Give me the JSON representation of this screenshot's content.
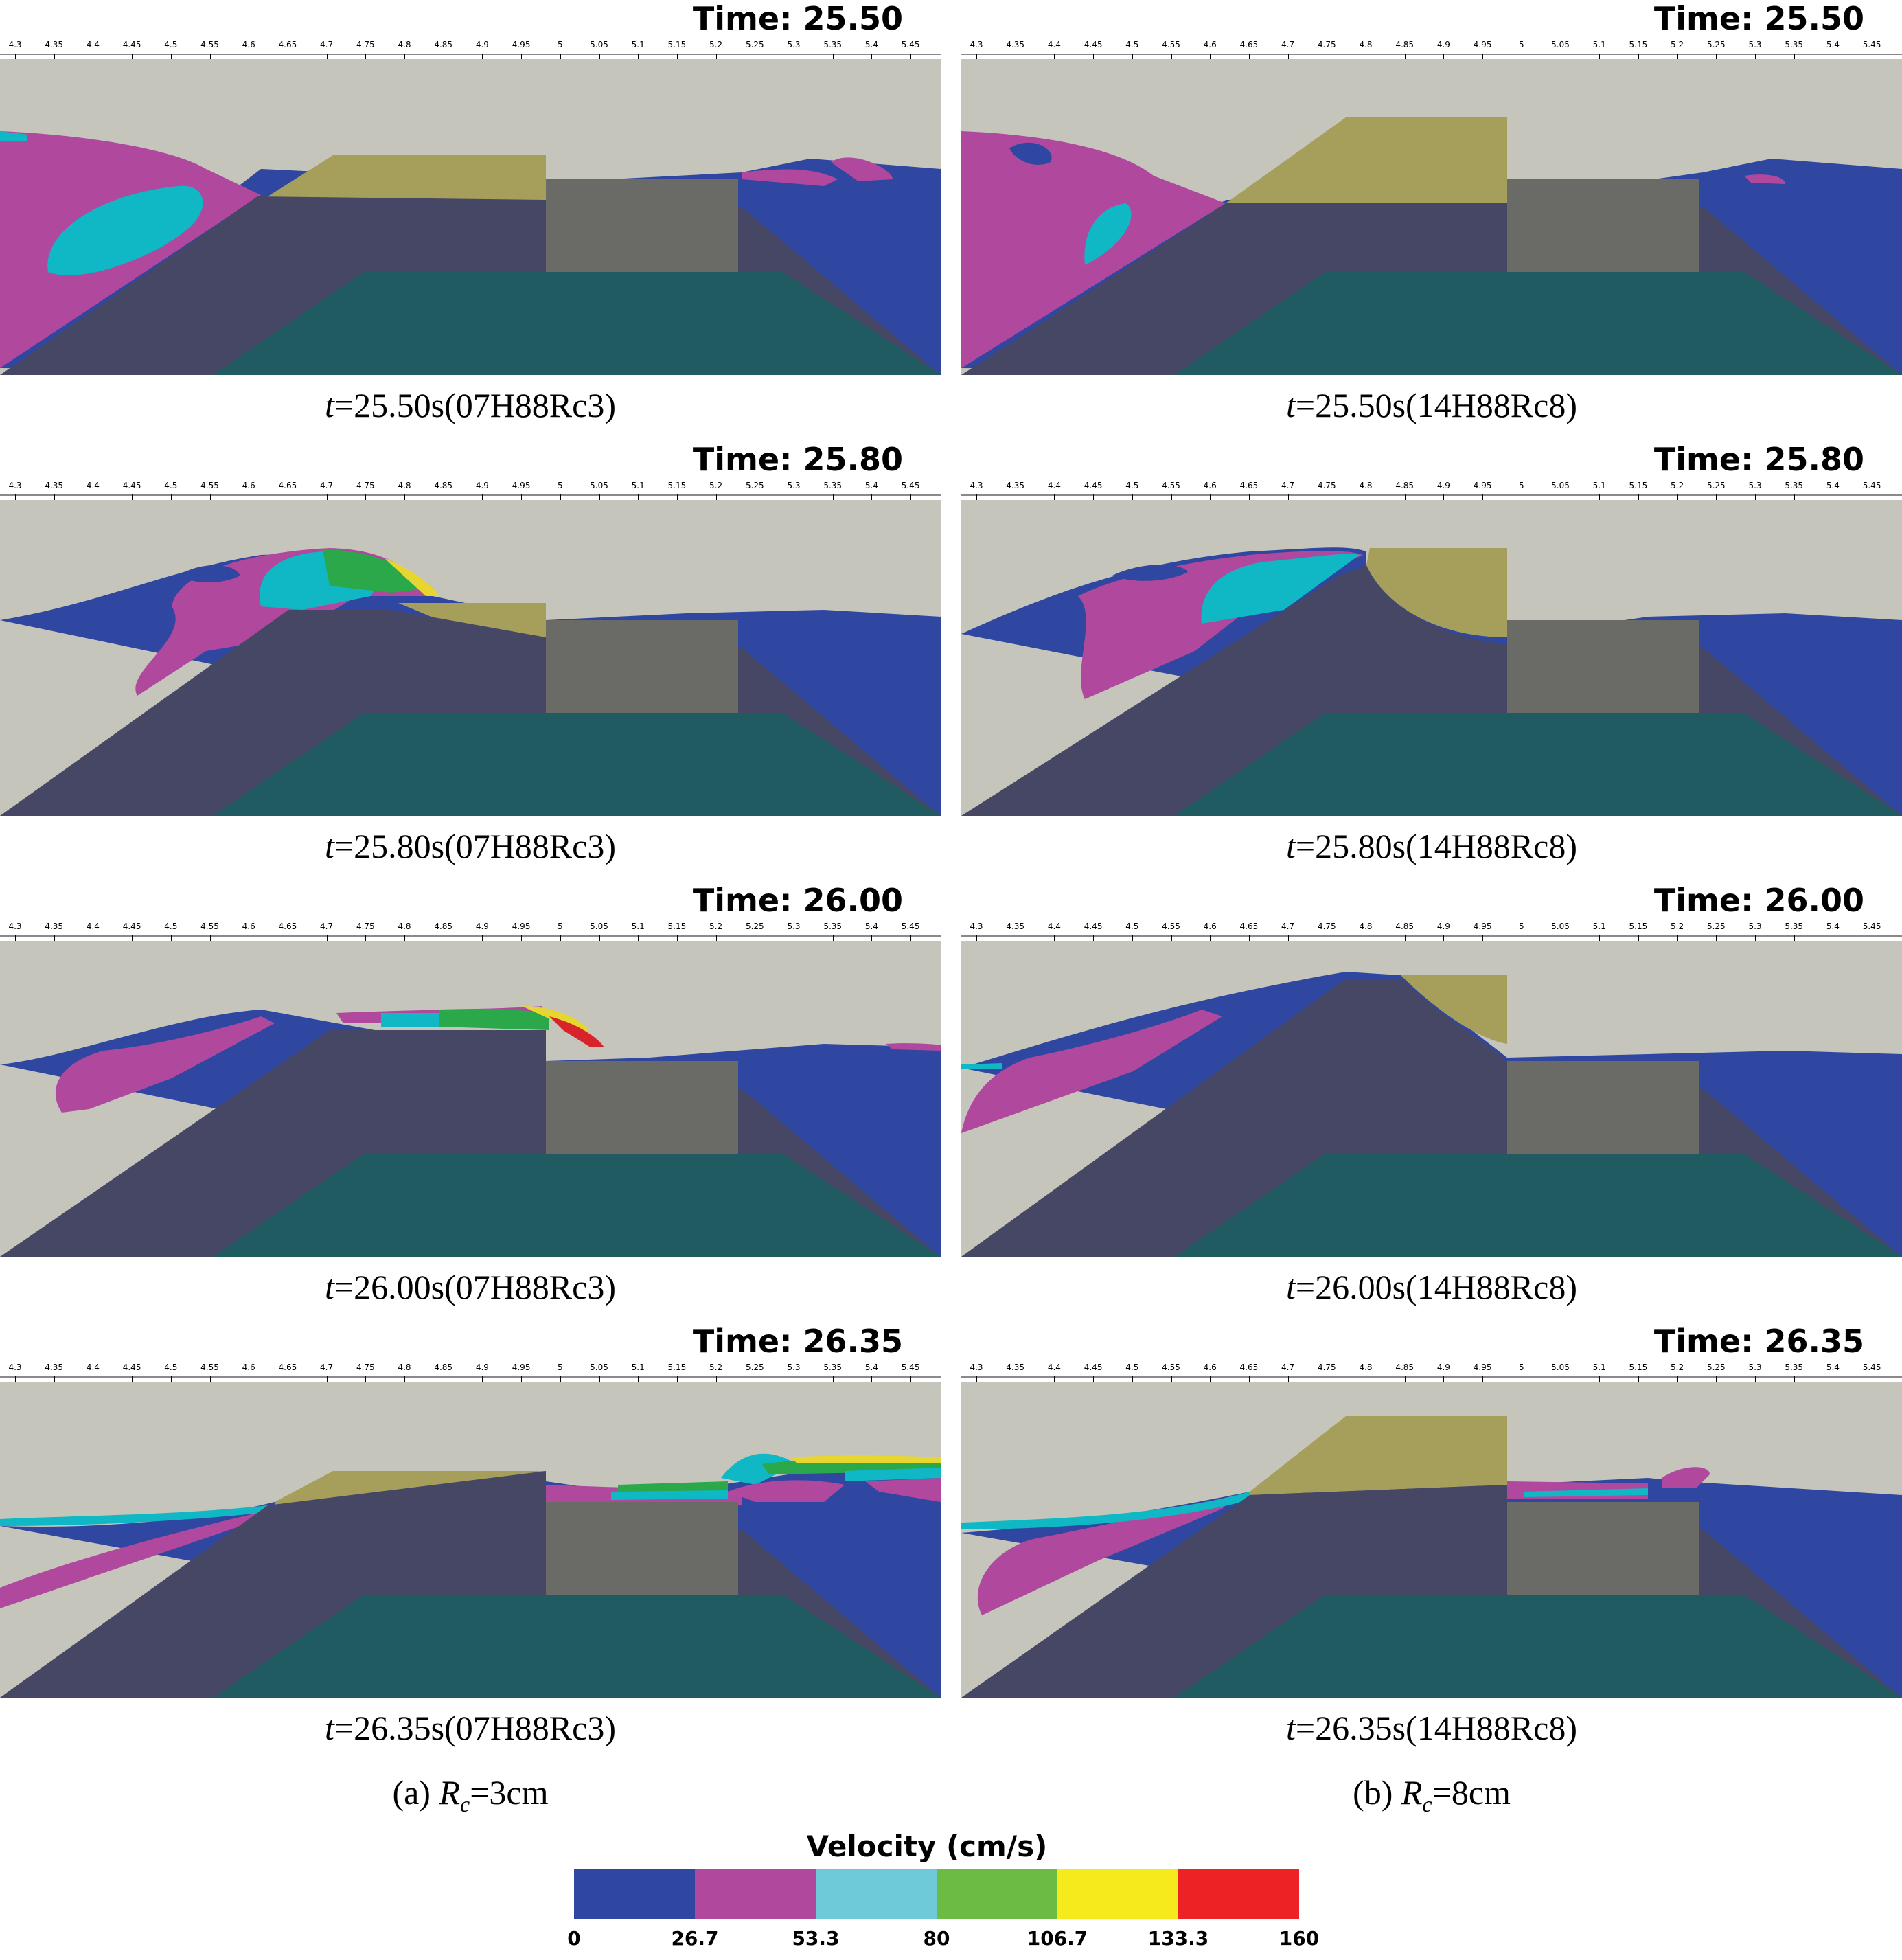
{
  "ruler_ticks": [
    "4.3",
    "4.35",
    "4.4",
    "4.45",
    "4.5",
    "4.55",
    "4.6",
    "4.65",
    "4.7",
    "4.75",
    "4.8",
    "4.85",
    "4.9",
    "4.95",
    "5",
    "5.05",
    "5.1",
    "5.15",
    "5.2",
    "5.25",
    "5.3",
    "5.35",
    "5.4",
    "5.45"
  ],
  "panels": [
    {
      "time_label": "Time: 25.50",
      "caption_t": "t",
      "caption_rest": "=25.50s(07H88Rc3)"
    },
    {
      "time_label": "Time: 25.50",
      "caption_t": "t",
      "caption_rest": "=25.50s(14H88Rc8)"
    },
    {
      "time_label": "Time: 25.80",
      "caption_t": "t",
      "caption_rest": "=25.80s(07H88Rc3)"
    },
    {
      "time_label": "Time: 25.80",
      "caption_t": "t",
      "caption_rest": "=25.80s(14H88Rc8)"
    },
    {
      "time_label": "Time: 26.00",
      "caption_t": "t",
      "caption_rest": "=26.00s(07H88Rc3)"
    },
    {
      "time_label": "Time: 26.00",
      "caption_t": "t",
      "caption_rest": "=26.00s(14H88Rc8)"
    },
    {
      "time_label": "Time: 26.35",
      "caption_t": "t",
      "caption_rest": "=26.35s(07H88Rc3)"
    },
    {
      "time_label": "Time: 26.35",
      "caption_t": "t",
      "caption_rest": "=26.35s(14H88Rc8)"
    }
  ],
  "column_labels": [
    {
      "prefix": "(a)  ",
      "var": "R",
      "sub": "c",
      "suffix": "=3cm"
    },
    {
      "prefix": "(b)  ",
      "var": "R",
      "sub": "c",
      "suffix": "=8cm"
    }
  ],
  "legend": {
    "title": "Velocity (cm/s)",
    "colors": [
      "#2f47a0",
      "#b0489e",
      "#6ecad8",
      "#6cbb45",
      "#f5ea1c",
      "#ec2224"
    ],
    "labels": [
      "0",
      "26.7",
      "53.3",
      "80",
      "106.7",
      "133.3",
      "160"
    ]
  },
  "scene_colors": {
    "air": "#c5c5bc",
    "water_slow": "#2f47a0",
    "water_mid": "#b0489e",
    "water_fast": "#0fb8c4",
    "water_green": "#2aa84a",
    "water_yellow": "#e8d630",
    "water_red": "#d8232a",
    "breakwater": "#464764",
    "crown_wall": "#a69f5c",
    "block": "#6a6b66",
    "seabed": "#1f5b60"
  }
}
